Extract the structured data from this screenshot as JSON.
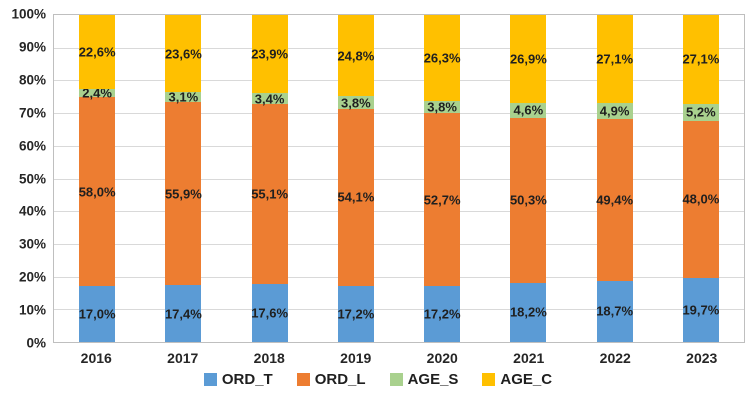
{
  "chart_data": {
    "type": "bar",
    "variant": "stacked-100-percent",
    "title": "",
    "xlabel": "",
    "ylabel": "",
    "grid": true,
    "legend_position": "bottom",
    "categories": [
      "2016",
      "2017",
      "2018",
      "2019",
      "2020",
      "2021",
      "2022",
      "2023"
    ],
    "series": [
      {
        "name": "ORD_T",
        "color": "#5B9BD5",
        "values": [
          17.0,
          17.4,
          17.6,
          17.2,
          17.2,
          18.2,
          18.7,
          19.7
        ],
        "labels": [
          "17,0%",
          "17,4%",
          "17,6%",
          "17,2%",
          "17,2%",
          "18,2%",
          "18,7%",
          "19,7%"
        ]
      },
      {
        "name": "ORD_L",
        "color": "#ED7D31",
        "values": [
          58.0,
          55.9,
          55.1,
          54.1,
          52.7,
          50.3,
          49.4,
          48.0
        ],
        "labels": [
          "58,0%",
          "55,9%",
          "55,1%",
          "54,1%",
          "52,7%",
          "50,3%",
          "49,4%",
          "48,0%"
        ]
      },
      {
        "name": "AGE_S",
        "color": "#A9D18E",
        "values": [
          2.4,
          3.1,
          3.4,
          3.8,
          3.8,
          4.6,
          4.9,
          5.2
        ],
        "labels": [
          "2,4%",
          "3,1%",
          "3,4%",
          "3,8%",
          "3,8%",
          "4,6%",
          "4,9%",
          "5,2%"
        ]
      },
      {
        "name": "AGE_C",
        "color": "#FFC000",
        "values": [
          22.6,
          23.6,
          23.9,
          24.8,
          26.3,
          26.9,
          27.1,
          27.1
        ],
        "labels": [
          "22,6%",
          "23,6%",
          "23,9%",
          "24,8%",
          "26,3%",
          "26,9%",
          "27,1%",
          "27,1%"
        ]
      }
    ],
    "y_axis": {
      "min": 0,
      "max": 100,
      "step": 10,
      "tick_labels": [
        "0%",
        "10%",
        "20%",
        "30%",
        "40%",
        "50%",
        "60%",
        "70%",
        "80%",
        "90%",
        "100%"
      ]
    },
    "legend": [
      "ORD_T",
      "ORD_L",
      "AGE_S",
      "AGE_C"
    ]
  },
  "colors": {
    "gridline": "#D9D9D9",
    "plot_border": "#BFBFBF",
    "data_label_text": "#1F1F1F",
    "axis_text": "#262626",
    "background": "#FFFFFF"
  }
}
